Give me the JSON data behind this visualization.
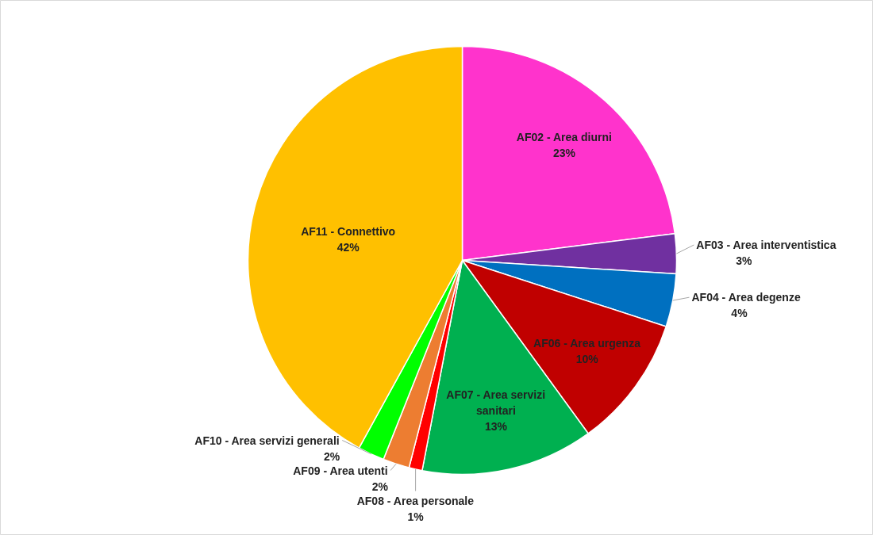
{
  "chart_data": {
    "type": "pie",
    "categories": [
      "AF02 - Area diurni",
      "AF03 - Area interventistica",
      "AF04 - Area degenze",
      "AF06 - Area urgenza",
      "AF07 - Area servizi sanitari",
      "AF08 - Area personale",
      "AF09 - Area utenti",
      "AF10 - Area servizi generali",
      "AF11 - Connettivo"
    ],
    "values": [
      23,
      3,
      4,
      10,
      13,
      1,
      2,
      2,
      42
    ],
    "value_labels": [
      "23%",
      "3%",
      "4%",
      "10%",
      "13%",
      "1%",
      "2%",
      "2%",
      "42%"
    ],
    "colors": [
      "#ff33cc",
      "#7030a0",
      "#0070c0",
      "#c00000",
      "#00b050",
      "#ff0000",
      "#ed7d31",
      "#00ff00",
      "#ffc000"
    ]
  }
}
